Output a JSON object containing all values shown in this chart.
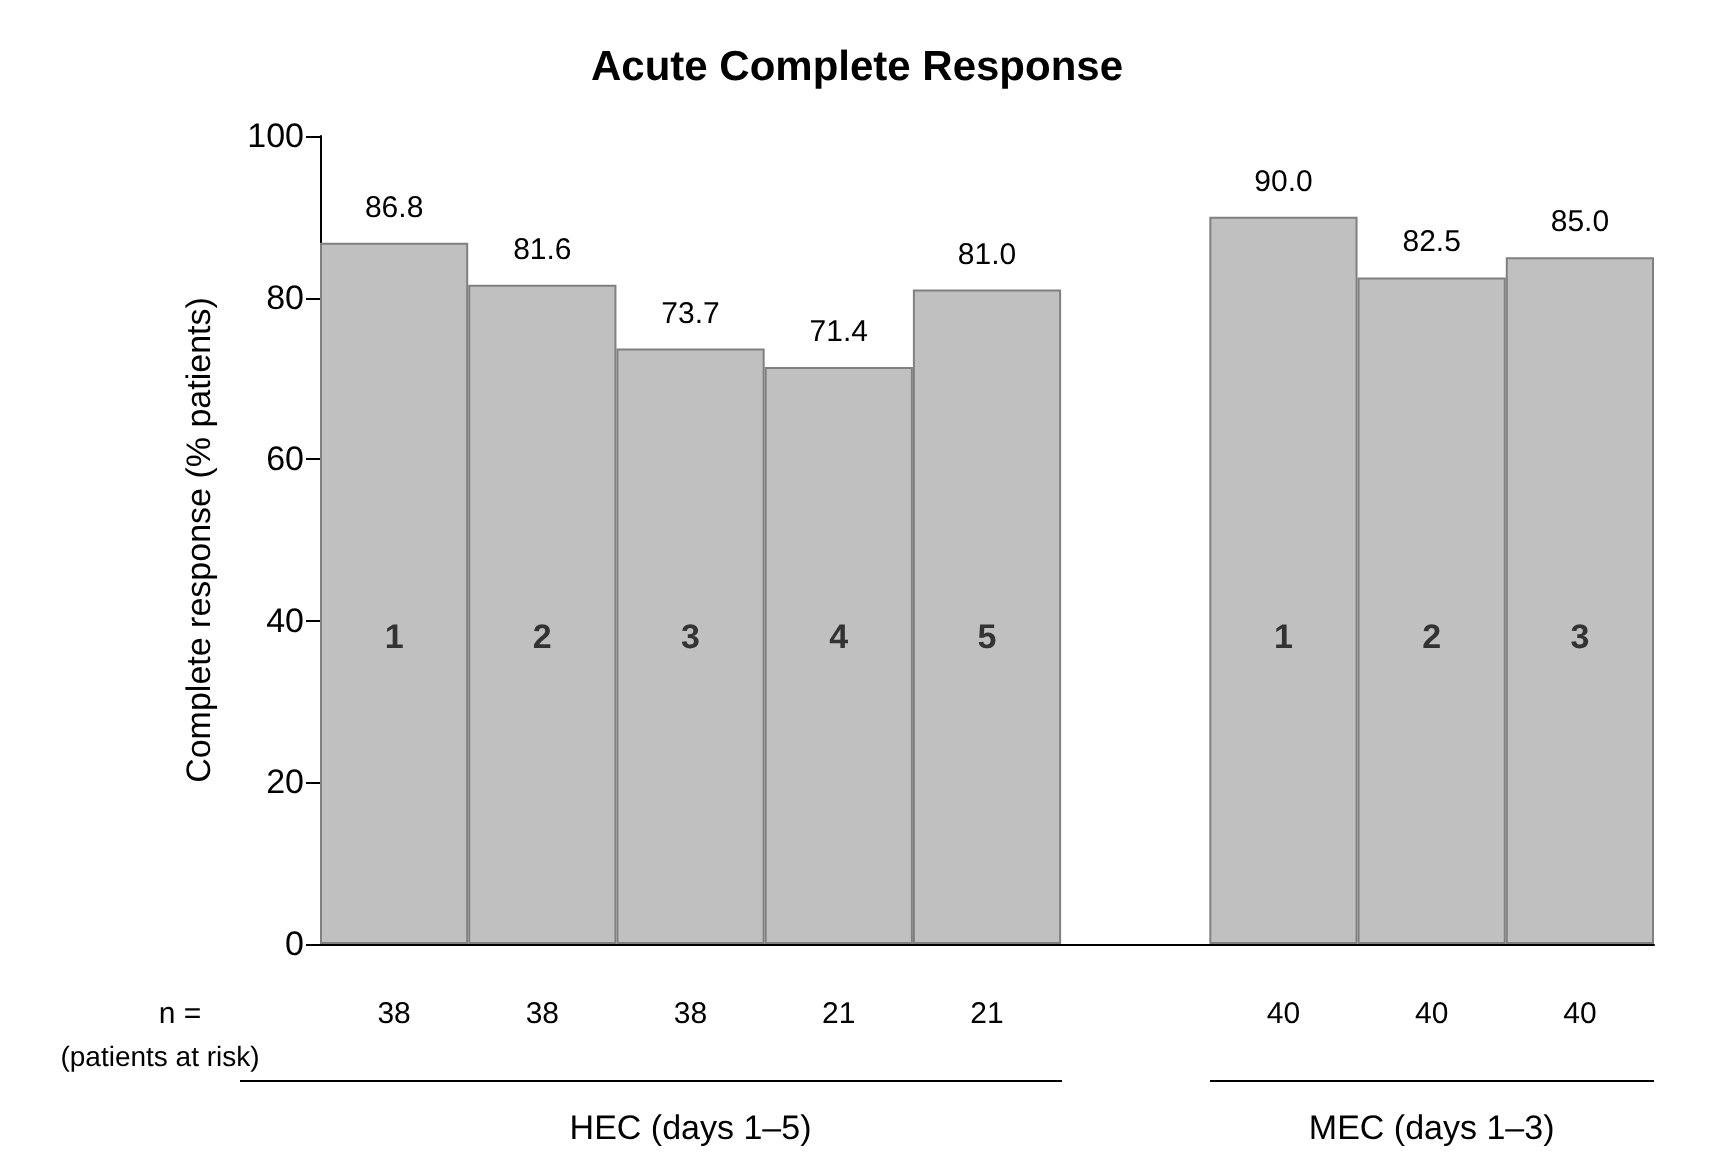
{
  "chart_data": {
    "type": "bar",
    "title": "Acute Complete Response",
    "ylabel": "Complete response (% patients)",
    "categories": [
      "1",
      "2",
      "3",
      "4",
      "5",
      null,
      "1",
      "2",
      "3"
    ],
    "values": [
      86.8,
      81.6,
      73.7,
      71.4,
      81.0,
      null,
      90.0,
      82.5,
      85.0
    ],
    "value_labels": [
      "86.8",
      "81.6",
      "73.7",
      "71.4",
      "81.0",
      null,
      "90.0",
      "82.5",
      "85.0"
    ],
    "color": "#c0c0c0",
    "ylim": [
      0,
      100
    ],
    "yticks": [
      0,
      20,
      40,
      60,
      80,
      100
    ],
    "annotations": [
      "n =",
      "(patients at risk)",
      "38",
      "38",
      "38",
      "21",
      "21",
      "40",
      "40",
      "40",
      "HEC (days 1–5)",
      "MEC (days 1–3)"
    ]
  }
}
